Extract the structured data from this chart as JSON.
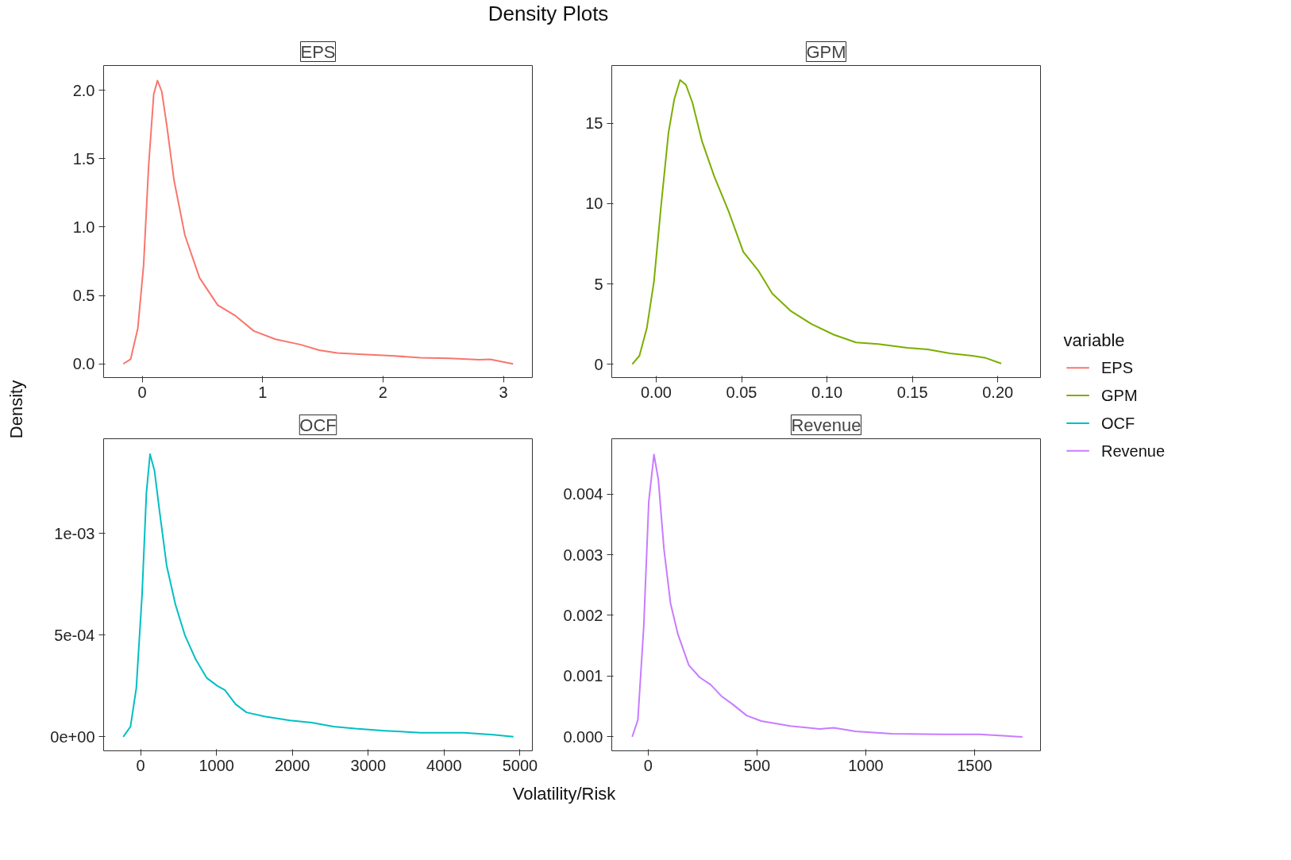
{
  "chart_data": [
    {
      "type": "line",
      "title": "EPS",
      "annotations": [
        "Density Plots"
      ],
      "ylabel": "Density",
      "legend": "right",
      "legend_title": "variable",
      "xlim": [
        -0.32,
        3.24
      ],
      "ylim": [
        -0.1,
        2.18
      ],
      "xticks": [
        0,
        1,
        2,
        3
      ],
      "yticks": [
        {
          "value": 0,
          "label": "0.0"
        },
        0.5,
        {
          "value": 1,
          "label": "1.0"
        },
        1.5,
        {
          "value": 2,
          "label": "2.0"
        }
      ],
      "x": [
        -0.157,
        -0.096,
        -0.036,
        0.012,
        0.054,
        0.096,
        0.127,
        0.163,
        0.205,
        0.265,
        0.355,
        0.476,
        0.627,
        0.777,
        0.928,
        1.108,
        1.319,
        1.47,
        1.62,
        1.83,
        2.07,
        2.31,
        2.55,
        2.8,
        2.89,
        2.98,
        3.08
      ],
      "series": [
        {
          "name": "EPS",
          "color": "#f8766d",
          "values": [
            0,
            0.034,
            0.26,
            0.72,
            1.45,
            1.97,
            2.07,
            1.99,
            1.74,
            1.34,
            0.94,
            0.63,
            0.43,
            0.35,
            0.24,
            0.18,
            0.14,
            0.1,
            0.08,
            0.07,
            0.06,
            0.045,
            0.04,
            0.03,
            0.034,
            0.017,
            0
          ]
        }
      ]
    },
    {
      "type": "line",
      "title": "GPM",
      "legend": "right",
      "xlim": [
        -0.026,
        0.225
      ],
      "ylim": [
        -0.83,
        18.6
      ],
      "xticks": [
        {
          "value": 0,
          "label": "0.00"
        },
        0.05,
        {
          "value": 0.1,
          "label": "0.10"
        },
        0.15,
        {
          "value": 0.2,
          "label": "0.20"
        }
      ],
      "yticks": [
        0,
        5,
        10,
        15
      ],
      "x": [
        -0.014,
        -0.0098,
        -0.0055,
        -0.0013,
        0.003,
        0.0072,
        0.0106,
        0.014,
        0.0174,
        0.0212,
        0.0268,
        0.034,
        0.0425,
        0.051,
        0.06,
        0.068,
        0.079,
        0.091,
        0.104,
        0.117,
        0.13,
        0.147,
        0.159,
        0.172,
        0.185,
        0.193,
        0.202
      ],
      "series": [
        {
          "name": "GPM",
          "color": "#7cae00",
          "values": [
            0,
            0.53,
            2.23,
            5.15,
            10.0,
            14.4,
            16.5,
            17.7,
            17.4,
            16.3,
            13.9,
            11.7,
            9.5,
            7.0,
            5.8,
            4.4,
            3.3,
            2.5,
            1.84,
            1.36,
            1.26,
            1.02,
            0.92,
            0.68,
            0.53,
            0.39,
            0.05
          ]
        }
      ]
    },
    {
      "type": "line",
      "title": "OCF",
      "xlabel": "Volatility/Risk",
      "legend": "right",
      "xlim": [
        -488,
        5163
      ],
      "ylim": [
        -6.9e-05,
        0.001466
      ],
      "xticks": [
        0,
        1000,
        2000,
        3000,
        4000,
        5000
      ],
      "yticks": [
        {
          "value": 0,
          "label": "0e+00"
        },
        {
          "value": 0.0005,
          "label": "5e-04"
        },
        {
          "value": 0.001,
          "label": "1e-03"
        }
      ],
      "x": [
        -229,
        -134,
        -57,
        19,
        76,
        124,
        182,
        249,
        344,
        459,
        583,
        727,
        870,
        1013,
        1109,
        1252,
        1396,
        1635,
        1969,
        2256,
        2543,
        2830,
        3212,
        3690,
        4264,
        4646,
        4914
      ],
      "series": [
        {
          "name": "OCF",
          "color": "#00bfc4",
          "values": [
            0,
            5e-05,
            0.00024,
            0.0007,
            0.0012,
            0.00139,
            0.00131,
            0.00111,
            0.00084,
            0.00065,
            0.0005,
            0.00038,
            0.00029,
            0.00025,
            0.00023,
            0.00016,
            0.00012,
            0.0001,
            8e-05,
            7e-05,
            5e-05,
            4e-05,
            3e-05,
            2e-05,
            2e-05,
            1e-05,
            0
          ]
        }
      ]
    },
    {
      "type": "line",
      "title": "Revenue",
      "legend": "right",
      "xlim": [
        -167,
        1803
      ],
      "ylim": [
        -0.00023,
        0.00491
      ],
      "xticks": [
        0,
        500,
        1000,
        1500
      ],
      "yticks": [
        {
          "value": 0,
          "label": "0.000"
        },
        {
          "value": 0.001,
          "label": "0.001"
        },
        {
          "value": 0.002,
          "label": "0.002"
        },
        {
          "value": 0.003,
          "label": "0.003"
        },
        {
          "value": 0.004,
          "label": "0.004"
        }
      ],
      "x": [
        -73,
        -47,
        -20,
        3,
        27,
        47,
        73,
        103,
        137,
        187,
        237,
        287,
        337,
        387,
        453,
        520,
        653,
        787,
        853,
        953,
        1120,
        1353,
        1520,
        1720
      ],
      "series": [
        {
          "name": "Revenue",
          "color": "#c77cff",
          "values": [
            0,
            0.00028,
            0.00182,
            0.00387,
            0.00465,
            0.00424,
            0.00309,
            0.0022,
            0.00169,
            0.00118,
            0.00098,
            0.00086,
            0.00067,
            0.00054,
            0.00035,
            0.00026,
            0.00018,
            0.00013,
            0.00015,
            9e-05,
            5e-05,
            4e-05,
            4e-05,
            0
          ]
        }
      ]
    }
  ]
}
